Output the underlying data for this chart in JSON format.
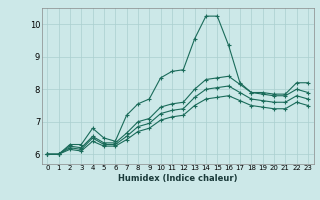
{
  "title": "",
  "xlabel": "Humidex (Indice chaleur)",
  "ylabel": "",
  "bg_color": "#cce8e8",
  "line_color": "#1a6b5a",
  "grid_color": "#aacfcf",
  "xlim": [
    -0.5,
    23.5
  ],
  "ylim": [
    5.7,
    10.5
  ],
  "yticks": [
    6,
    7,
    8,
    9,
    10
  ],
  "xticks": [
    0,
    1,
    2,
    3,
    4,
    5,
    6,
    7,
    8,
    9,
    10,
    11,
    12,
    13,
    14,
    15,
    16,
    17,
    18,
    19,
    20,
    21,
    22,
    23
  ],
  "series": [
    [
      6.0,
      6.0,
      6.3,
      6.3,
      6.8,
      6.5,
      6.4,
      7.2,
      7.55,
      7.7,
      8.35,
      8.55,
      8.6,
      9.55,
      10.25,
      10.25,
      9.35,
      8.2,
      7.9,
      7.9,
      7.85,
      7.85,
      8.2,
      8.2
    ],
    [
      6.0,
      6.0,
      6.25,
      6.2,
      6.55,
      6.35,
      6.35,
      6.65,
      7.0,
      7.1,
      7.45,
      7.55,
      7.6,
      8.0,
      8.3,
      8.35,
      8.4,
      8.15,
      7.9,
      7.85,
      7.8,
      7.8,
      8.0,
      7.9
    ],
    [
      6.0,
      6.0,
      6.2,
      6.15,
      6.5,
      6.3,
      6.3,
      6.55,
      6.85,
      6.95,
      7.25,
      7.35,
      7.4,
      7.75,
      8.0,
      8.05,
      8.1,
      7.9,
      7.7,
      7.65,
      7.6,
      7.6,
      7.8,
      7.7
    ],
    [
      6.0,
      6.0,
      6.15,
      6.1,
      6.4,
      6.25,
      6.25,
      6.45,
      6.7,
      6.8,
      7.05,
      7.15,
      7.2,
      7.5,
      7.7,
      7.75,
      7.8,
      7.65,
      7.5,
      7.45,
      7.4,
      7.4,
      7.6,
      7.5
    ]
  ]
}
